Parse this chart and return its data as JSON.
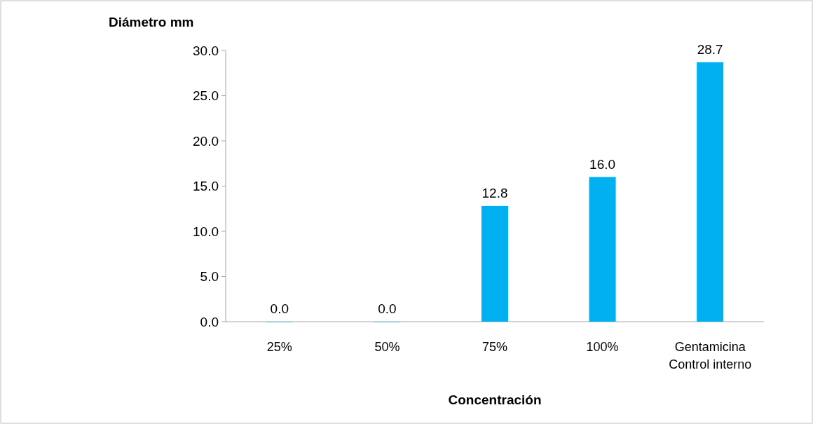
{
  "chart_data": {
    "type": "bar",
    "xlabel": "Concentración",
    "ylabel": "Diámetro mm",
    "categories": [
      "25%",
      "50%",
      "75%",
      "100%",
      "Gentamicina Control interno"
    ],
    "values": [
      0,
      0,
      12.8,
      16,
      28.7
    ],
    "value_labels": [
      "0.0",
      "0.0",
      "12.8",
      "16.0",
      "28.7"
    ],
    "color": "#00b0f0",
    "ylim": [
      0,
      30
    ],
    "yticks": [
      {
        "value": 0,
        "label": "0.0"
      },
      {
        "value": 5,
        "label": "5.0"
      },
      {
        "value": 10,
        "label": "10.0"
      },
      {
        "value": 15,
        "label": "15.0"
      },
      {
        "value": 20,
        "label": "20.0"
      },
      {
        "value": 25,
        "label": "25.0"
      },
      {
        "value": 30,
        "label": "30.0"
      }
    ],
    "grid": false
  }
}
